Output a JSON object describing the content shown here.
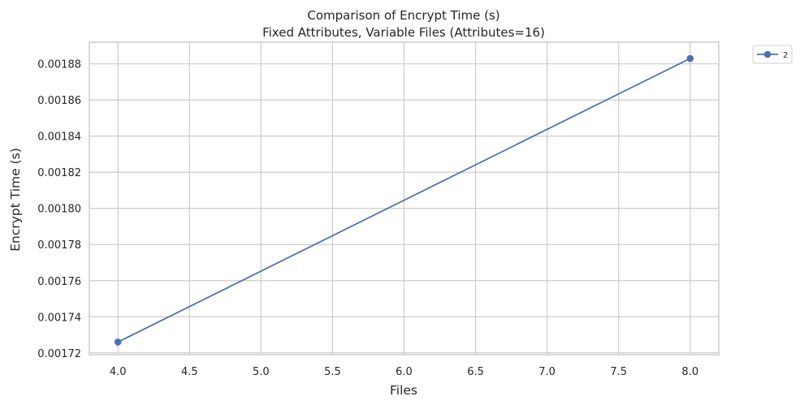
{
  "chart_data": {
    "type": "line",
    "title": "Comparison of Encrypt Time (s)",
    "subtitle": "Fixed Attributes, Variable Files (Attributes=16)",
    "xlabel": "Files",
    "ylabel": "Encrypt Time (s)",
    "xlim": [
      3.8,
      8.2
    ],
    "ylim": [
      0.001719,
      0.001892
    ],
    "x_ticks": [
      4.0,
      4.5,
      5.0,
      5.5,
      6.0,
      6.5,
      7.0,
      7.5,
      8.0
    ],
    "x_tick_labels": [
      "4.0",
      "4.5",
      "5.0",
      "5.5",
      "6.0",
      "6.5",
      "7.0",
      "7.5",
      "8.0"
    ],
    "y_ticks": [
      0.00172,
      0.00174,
      0.00176,
      0.00178,
      0.0018,
      0.00182,
      0.00184,
      0.00186,
      0.00188
    ],
    "y_tick_labels": [
      "0.00172",
      "0.00174",
      "0.00176",
      "0.00178",
      "0.00180",
      "0.00182",
      "0.00184",
      "0.00186",
      "0.00188"
    ],
    "grid": true,
    "legend_position": "outside-top-right",
    "series": [
      {
        "name": "2",
        "color": "#4c72b0",
        "marker": "circle",
        "x": [
          4.0,
          8.0
        ],
        "y": [
          0.001726,
          0.001883
        ]
      }
    ]
  },
  "colors": {
    "grid": "#cccccc",
    "frame": "#cccccc",
    "text": "#262626",
    "series": "#4c72b0"
  }
}
